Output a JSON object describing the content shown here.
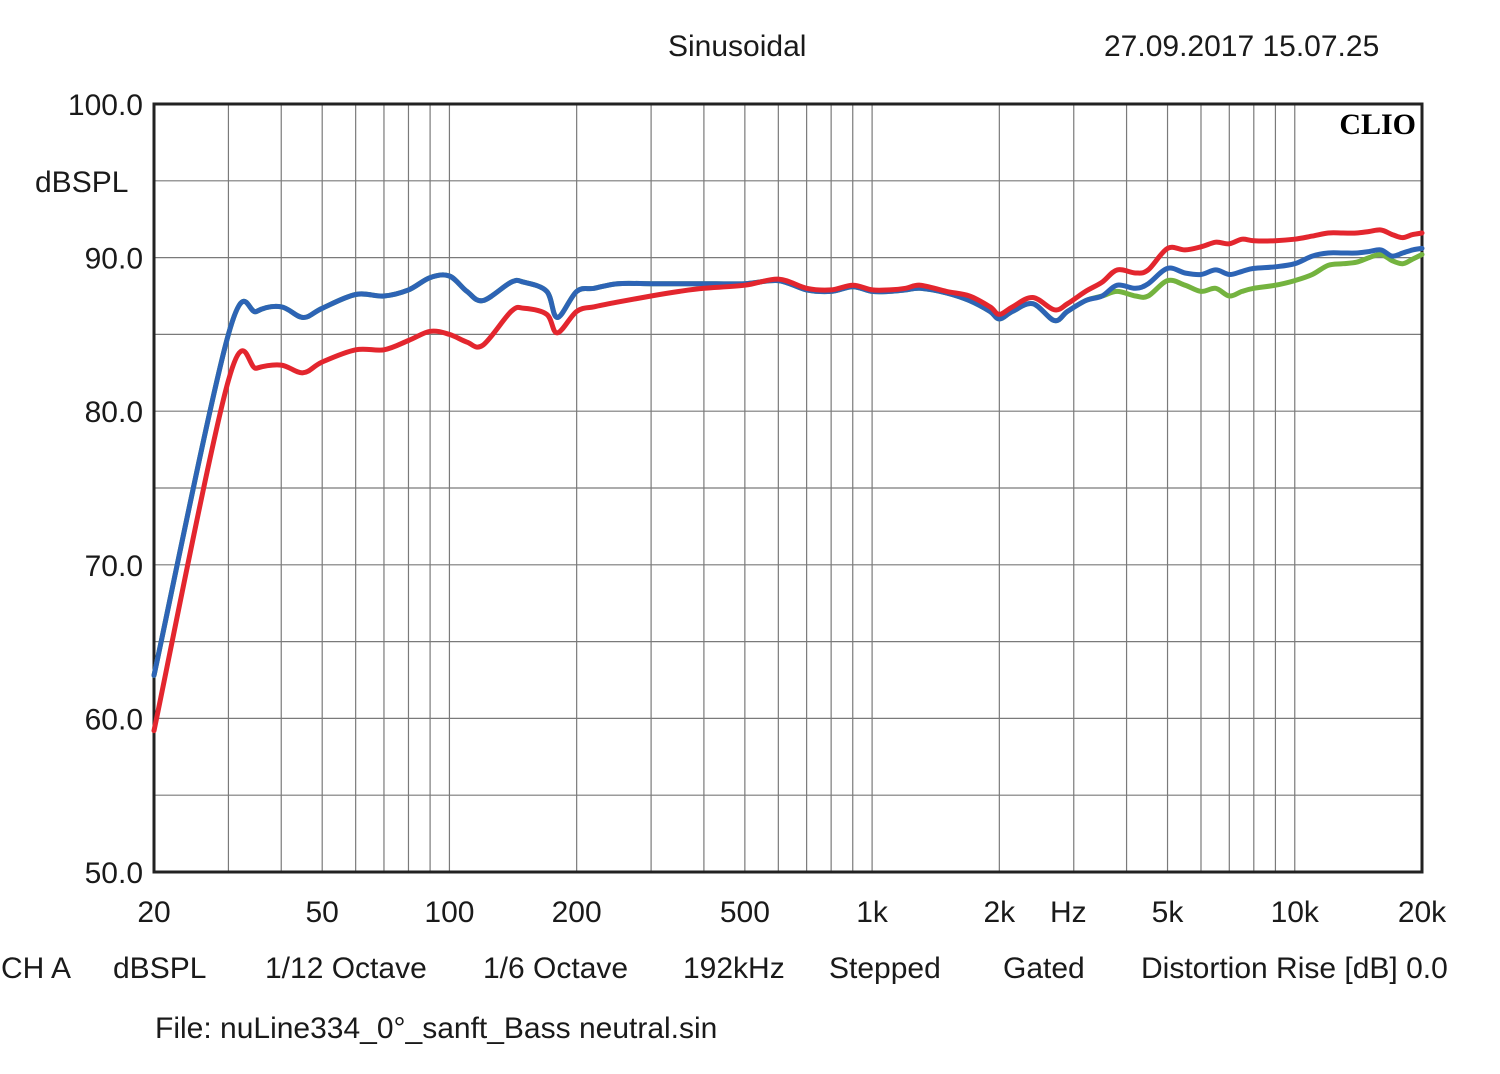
{
  "header": {
    "mode": "Sinusoidal",
    "datetime": "27.09.2017 15.07.25",
    "brand": "CLIO"
  },
  "footer": {
    "channel": "CH A",
    "unit": "dBSPL",
    "resolution": "1/12 Octave",
    "smoothing": "1/6 Octave",
    "rate": "192kHz",
    "method": "Stepped",
    "gating": "Gated",
    "distortion": "Distortion Rise [dB] 0.0",
    "file": "File: nuLine334_0°_sanft_Bass neutral.sin"
  },
  "chart_data": {
    "type": "line",
    "xscale": "log",
    "xlim": [
      20,
      20000
    ],
    "ylim": [
      50,
      100
    ],
    "ylabel": "dBSPL",
    "xunit": "Hz",
    "grid": true,
    "yticks": [
      {
        "value": 100,
        "label": "100.0"
      },
      {
        "value": 90,
        "label": "90.0"
      },
      {
        "value": 80,
        "label": "80.0"
      },
      {
        "value": 70,
        "label": "70.0"
      },
      {
        "value": 60,
        "label": "60.0"
      },
      {
        "value": 50,
        "label": "50.0"
      }
    ],
    "xticks": [
      {
        "value": 20,
        "label": "20"
      },
      {
        "value": 50,
        "label": "50"
      },
      {
        "value": 100,
        "label": "100"
      },
      {
        "value": 200,
        "label": "200"
      },
      {
        "value": 500,
        "label": "500"
      },
      {
        "value": 1000,
        "label": "1k"
      },
      {
        "value": 2000,
        "label": "2k"
      },
      {
        "value": 5000,
        "label": "5k"
      },
      {
        "value": 10000,
        "label": "10k"
      },
      {
        "value": 20000,
        "label": "20k"
      }
    ],
    "series": [
      {
        "color": "#74b33f",
        "x": [
          20,
          30,
          35,
          40,
          45,
          50,
          60,
          70,
          80,
          90,
          100,
          110,
          120,
          140,
          150,
          170,
          180,
          200,
          220,
          250,
          300,
          350,
          400,
          500,
          600,
          700,
          800,
          900,
          1000,
          1100,
          1200,
          1300,
          1500,
          1700,
          1900,
          2000,
          2150,
          2400,
          2700,
          2900,
          3200,
          3500,
          3800,
          4200,
          4500,
          5000,
          5500,
          6000,
          6500,
          7000,
          7500,
          8000,
          9000,
          10000,
          11000,
          12000,
          13000,
          14000,
          15000,
          16000,
          17000,
          18000,
          19000,
          20000
        ],
        "y": [
          62.8,
          85.0,
          86.5,
          86.8,
          86.1,
          86.7,
          87.6,
          87.5,
          87.9,
          88.7,
          88.8,
          87.8,
          87.2,
          88.4,
          88.4,
          87.8,
          86.1,
          87.8,
          88.0,
          88.3,
          88.3,
          88.3,
          88.3,
          88.3,
          88.5,
          87.9,
          87.8,
          88.1,
          87.8,
          87.8,
          87.9,
          88.0,
          87.7,
          87.2,
          86.5,
          86.0,
          86.5,
          87.0,
          85.9,
          86.5,
          87.2,
          87.5,
          87.8,
          87.5,
          87.5,
          88.5,
          88.2,
          87.8,
          88.0,
          87.5,
          87.8,
          88.0,
          88.2,
          88.5,
          88.9,
          89.5,
          89.6,
          89.7,
          90.0,
          90.2,
          89.8,
          89.6,
          89.9,
          90.2
        ]
      },
      {
        "color": "#2d64b5",
        "x": [
          20,
          30,
          35,
          40,
          45,
          50,
          60,
          70,
          80,
          90,
          100,
          110,
          120,
          140,
          150,
          170,
          180,
          200,
          220,
          250,
          300,
          350,
          400,
          500,
          600,
          700,
          800,
          900,
          1000,
          1100,
          1200,
          1300,
          1500,
          1700,
          1900,
          2000,
          2150,
          2400,
          2700,
          2900,
          3200,
          3500,
          3800,
          4200,
          4500,
          5000,
          5500,
          6000,
          6500,
          7000,
          7500,
          8000,
          9000,
          10000,
          11000,
          12000,
          13000,
          14000,
          15000,
          16000,
          17000,
          18000,
          19000,
          20000
        ],
        "y": [
          62.8,
          85.0,
          86.5,
          86.8,
          86.1,
          86.7,
          87.6,
          87.5,
          87.9,
          88.7,
          88.8,
          87.8,
          87.2,
          88.4,
          88.4,
          87.8,
          86.1,
          87.8,
          88.0,
          88.3,
          88.3,
          88.3,
          88.3,
          88.3,
          88.5,
          87.9,
          87.8,
          88.1,
          87.8,
          87.8,
          87.9,
          88.0,
          87.7,
          87.2,
          86.5,
          86.0,
          86.5,
          87.0,
          85.9,
          86.5,
          87.2,
          87.5,
          88.2,
          88.0,
          88.3,
          89.3,
          89.0,
          88.9,
          89.2,
          88.9,
          89.1,
          89.3,
          89.4,
          89.6,
          90.1,
          90.3,
          90.3,
          90.3,
          90.4,
          90.5,
          90.1,
          90.3,
          90.5,
          90.6
        ]
      },
      {
        "color": "#e3262e",
        "x": [
          20,
          30,
          35,
          40,
          45,
          50,
          60,
          70,
          80,
          90,
          100,
          110,
          120,
          140,
          150,
          170,
          180,
          200,
          220,
          250,
          300,
          350,
          400,
          500,
          600,
          700,
          800,
          900,
          1000,
          1100,
          1200,
          1300,
          1500,
          1700,
          1900,
          2000,
          2150,
          2400,
          2700,
          2900,
          3200,
          3500,
          3800,
          4200,
          4500,
          5000,
          5500,
          6000,
          6500,
          7000,
          7500,
          8000,
          9000,
          10000,
          11000,
          12000,
          13000,
          14000,
          15000,
          16000,
          17000,
          18000,
          19000,
          20000
        ],
        "y": [
          59.2,
          82.0,
          82.8,
          83.0,
          82.5,
          83.2,
          84.0,
          84.0,
          84.6,
          85.2,
          85.0,
          84.5,
          84.3,
          86.5,
          86.7,
          86.3,
          85.1,
          86.5,
          86.8,
          87.1,
          87.5,
          87.8,
          88.0,
          88.2,
          88.6,
          88.0,
          87.9,
          88.2,
          87.9,
          87.9,
          88.0,
          88.2,
          87.8,
          87.5,
          86.8,
          86.3,
          86.8,
          87.4,
          86.6,
          87.0,
          87.8,
          88.4,
          89.2,
          89.0,
          89.2,
          90.6,
          90.5,
          90.7,
          91.0,
          90.9,
          91.2,
          91.1,
          91.1,
          91.2,
          91.4,
          91.6,
          91.6,
          91.6,
          91.7,
          91.8,
          91.5,
          91.3,
          91.5,
          91.6
        ]
      }
    ]
  }
}
